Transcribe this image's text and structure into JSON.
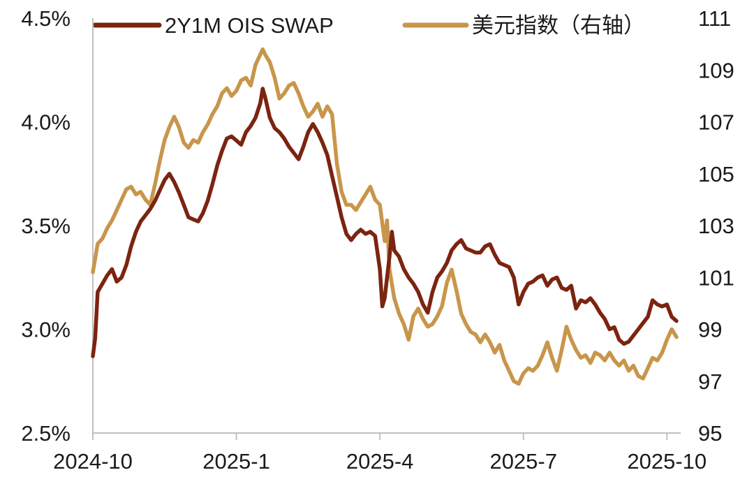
{
  "chart_data": {
    "type": "line",
    "title": "",
    "xlabel": "",
    "ylabel": "",
    "x_ticks": [
      "2024-10",
      "2025-1",
      "2025-4",
      "2025-7",
      "2025-10"
    ],
    "x_range": [
      0,
      12.2
    ],
    "y_left": {
      "ticks": [
        "4.5%",
        "4.0%",
        "3.5%",
        "3.0%",
        "2.5%"
      ],
      "tick_values": [
        4.5,
        4.0,
        3.5,
        3.0,
        2.5
      ],
      "range": [
        2.5,
        4.5
      ]
    },
    "y_right": {
      "ticks": [
        "111",
        "109",
        "107",
        "105",
        "103",
        "101",
        "99",
        "97",
        "95"
      ],
      "tick_values": [
        111,
        109,
        107,
        105,
        103,
        101,
        99,
        97,
        95
      ],
      "range": [
        95,
        111
      ]
    },
    "grid": false,
    "legend_position": "top",
    "series": [
      {
        "name": "2Y1M OIS SWAP",
        "axis": "left",
        "color": "#7b2410",
        "points": [
          [
            0.0,
            2.87
          ],
          [
            0.05,
            2.96
          ],
          [
            0.1,
            3.18
          ],
          [
            0.2,
            3.22
          ],
          [
            0.3,
            3.26
          ],
          [
            0.4,
            3.29
          ],
          [
            0.5,
            3.23
          ],
          [
            0.6,
            3.25
          ],
          [
            0.7,
            3.31
          ],
          [
            0.8,
            3.4
          ],
          [
            0.9,
            3.47
          ],
          [
            1.0,
            3.52
          ],
          [
            1.1,
            3.55
          ],
          [
            1.2,
            3.58
          ],
          [
            1.3,
            3.62
          ],
          [
            1.4,
            3.67
          ],
          [
            1.5,
            3.72
          ],
          [
            1.6,
            3.75
          ],
          [
            1.7,
            3.71
          ],
          [
            1.8,
            3.66
          ],
          [
            1.9,
            3.6
          ],
          [
            2.0,
            3.54
          ],
          [
            2.1,
            3.53
          ],
          [
            2.2,
            3.52
          ],
          [
            2.3,
            3.56
          ],
          [
            2.4,
            3.62
          ],
          [
            2.5,
            3.7
          ],
          [
            2.6,
            3.79
          ],
          [
            2.7,
            3.86
          ],
          [
            2.8,
            3.92
          ],
          [
            2.9,
            3.93
          ],
          [
            3.0,
            3.91
          ],
          [
            3.1,
            3.89
          ],
          [
            3.2,
            3.95
          ],
          [
            3.3,
            3.98
          ],
          [
            3.4,
            4.02
          ],
          [
            3.5,
            4.09
          ],
          [
            3.55,
            4.16
          ],
          [
            3.6,
            4.12
          ],
          [
            3.7,
            4.02
          ],
          [
            3.8,
            3.97
          ],
          [
            3.9,
            3.95
          ],
          [
            4.0,
            3.92
          ],
          [
            4.1,
            3.88
          ],
          [
            4.2,
            3.85
          ],
          [
            4.3,
            3.82
          ],
          [
            4.4,
            3.88
          ],
          [
            4.5,
            3.95
          ],
          [
            4.6,
            3.99
          ],
          [
            4.7,
            3.95
          ],
          [
            4.8,
            3.9
          ],
          [
            4.9,
            3.84
          ],
          [
            5.0,
            3.74
          ],
          [
            5.1,
            3.64
          ],
          [
            5.2,
            3.54
          ],
          [
            5.3,
            3.46
          ],
          [
            5.4,
            3.43
          ],
          [
            5.5,
            3.46
          ],
          [
            5.6,
            3.48
          ],
          [
            5.7,
            3.46
          ],
          [
            5.8,
            3.47
          ],
          [
            5.9,
            3.45
          ],
          [
            6.0,
            3.29
          ],
          [
            6.05,
            3.11
          ],
          [
            6.1,
            3.15
          ],
          [
            6.15,
            3.25
          ],
          [
            6.2,
            3.35
          ],
          [
            6.25,
            3.47
          ],
          [
            6.3,
            3.38
          ],
          [
            6.4,
            3.35
          ],
          [
            6.5,
            3.29
          ],
          [
            6.6,
            3.25
          ],
          [
            6.7,
            3.22
          ],
          [
            6.8,
            3.18
          ],
          [
            6.9,
            3.12
          ],
          [
            7.0,
            3.08
          ],
          [
            7.1,
            3.18
          ],
          [
            7.2,
            3.25
          ],
          [
            7.3,
            3.28
          ],
          [
            7.4,
            3.32
          ],
          [
            7.5,
            3.38
          ],
          [
            7.6,
            3.41
          ],
          [
            7.7,
            3.43
          ],
          [
            7.8,
            3.39
          ],
          [
            7.9,
            3.38
          ],
          [
            8.0,
            3.37
          ],
          [
            8.1,
            3.37
          ],
          [
            8.2,
            3.4
          ],
          [
            8.3,
            3.41
          ],
          [
            8.4,
            3.36
          ],
          [
            8.5,
            3.32
          ],
          [
            8.6,
            3.31
          ],
          [
            8.7,
            3.3
          ],
          [
            8.8,
            3.25
          ],
          [
            8.9,
            3.12
          ],
          [
            9.0,
            3.18
          ],
          [
            9.1,
            3.22
          ],
          [
            9.2,
            3.23
          ],
          [
            9.3,
            3.25
          ],
          [
            9.4,
            3.26
          ],
          [
            9.5,
            3.21
          ],
          [
            9.6,
            3.24
          ],
          [
            9.7,
            3.25
          ],
          [
            9.8,
            3.2
          ],
          [
            9.9,
            3.19
          ],
          [
            10.0,
            3.21
          ],
          [
            10.1,
            3.1
          ],
          [
            10.2,
            3.14
          ],
          [
            10.3,
            3.13
          ],
          [
            10.4,
            3.15
          ],
          [
            10.5,
            3.12
          ],
          [
            10.6,
            3.08
          ],
          [
            10.7,
            3.05
          ],
          [
            10.8,
            3.0
          ],
          [
            10.9,
            3.01
          ],
          [
            11.0,
            2.95
          ],
          [
            11.1,
            2.93
          ],
          [
            11.2,
            2.94
          ],
          [
            11.3,
            2.97
          ],
          [
            11.4,
            3.0
          ],
          [
            11.5,
            3.03
          ],
          [
            11.6,
            3.06
          ],
          [
            11.7,
            3.14
          ],
          [
            11.8,
            3.12
          ],
          [
            11.9,
            3.11
          ],
          [
            12.0,
            3.12
          ],
          [
            12.1,
            3.06
          ],
          [
            12.2,
            3.04
          ]
        ]
      },
      {
        "name": "美元指数（右轴）",
        "axis": "right",
        "color": "#c8964b",
        "points": [
          [
            0.0,
            101.2
          ],
          [
            0.1,
            102.3
          ],
          [
            0.2,
            102.5
          ],
          [
            0.3,
            102.9
          ],
          [
            0.4,
            103.2
          ],
          [
            0.5,
            103.6
          ],
          [
            0.6,
            104.0
          ],
          [
            0.7,
            104.4
          ],
          [
            0.8,
            104.5
          ],
          [
            0.9,
            104.2
          ],
          [
            1.0,
            104.3
          ],
          [
            1.1,
            104.0
          ],
          [
            1.2,
            103.8
          ],
          [
            1.3,
            104.6
          ],
          [
            1.4,
            105.5
          ],
          [
            1.5,
            106.3
          ],
          [
            1.6,
            106.8
          ],
          [
            1.7,
            107.2
          ],
          [
            1.8,
            106.8
          ],
          [
            1.9,
            106.2
          ],
          [
            2.0,
            106.0
          ],
          [
            2.1,
            106.3
          ],
          [
            2.2,
            106.2
          ],
          [
            2.3,
            106.6
          ],
          [
            2.4,
            106.9
          ],
          [
            2.5,
            107.3
          ],
          [
            2.6,
            107.6
          ],
          [
            2.7,
            108.1
          ],
          [
            2.8,
            108.3
          ],
          [
            2.9,
            108.0
          ],
          [
            3.0,
            108.2
          ],
          [
            3.1,
            108.6
          ],
          [
            3.2,
            108.7
          ],
          [
            3.3,
            108.4
          ],
          [
            3.4,
            109.2
          ],
          [
            3.5,
            109.6
          ],
          [
            3.55,
            109.8
          ],
          [
            3.6,
            109.6
          ],
          [
            3.7,
            109.3
          ],
          [
            3.8,
            108.7
          ],
          [
            3.9,
            107.9
          ],
          [
            4.0,
            108.1
          ],
          [
            4.1,
            108.4
          ],
          [
            4.2,
            108.5
          ],
          [
            4.3,
            108.1
          ],
          [
            4.4,
            107.6
          ],
          [
            4.5,
            107.2
          ],
          [
            4.6,
            107.4
          ],
          [
            4.7,
            107.7
          ],
          [
            4.8,
            107.2
          ],
          [
            4.9,
            107.6
          ],
          [
            5.0,
            107.3
          ],
          [
            5.1,
            105.4
          ],
          [
            5.2,
            104.3
          ],
          [
            5.3,
            103.8
          ],
          [
            5.4,
            103.8
          ],
          [
            5.5,
            103.6
          ],
          [
            5.6,
            103.9
          ],
          [
            5.7,
            104.2
          ],
          [
            5.8,
            104.5
          ],
          [
            5.9,
            104.0
          ],
          [
            6.0,
            103.8
          ],
          [
            6.1,
            102.4
          ],
          [
            6.15,
            103.2
          ],
          [
            6.2,
            101.3
          ],
          [
            6.3,
            100.2
          ],
          [
            6.4,
            99.6
          ],
          [
            6.5,
            99.2
          ],
          [
            6.6,
            98.6
          ],
          [
            6.7,
            99.5
          ],
          [
            6.8,
            99.8
          ],
          [
            6.9,
            99.4
          ],
          [
            7.0,
            99.1
          ],
          [
            7.1,
            99.2
          ],
          [
            7.2,
            99.5
          ],
          [
            7.3,
            99.9
          ],
          [
            7.4,
            100.8
          ],
          [
            7.5,
            101.3
          ],
          [
            7.6,
            100.5
          ],
          [
            7.7,
            99.6
          ],
          [
            7.8,
            99.2
          ],
          [
            7.9,
            98.9
          ],
          [
            8.0,
            98.8
          ],
          [
            8.1,
            98.5
          ],
          [
            8.2,
            98.8
          ],
          [
            8.3,
            98.5
          ],
          [
            8.4,
            98.1
          ],
          [
            8.5,
            98.4
          ],
          [
            8.6,
            97.8
          ],
          [
            8.7,
            97.4
          ],
          [
            8.8,
            97.0
          ],
          [
            8.9,
            96.9
          ],
          [
            9.0,
            97.3
          ],
          [
            9.1,
            97.5
          ],
          [
            9.2,
            97.4
          ],
          [
            9.3,
            97.6
          ],
          [
            9.4,
            98.0
          ],
          [
            9.5,
            98.5
          ],
          [
            9.6,
            97.9
          ],
          [
            9.7,
            97.4
          ],
          [
            9.8,
            98.2
          ],
          [
            9.9,
            99.1
          ],
          [
            10.0,
            98.6
          ],
          [
            10.1,
            98.2
          ],
          [
            10.2,
            97.9
          ],
          [
            10.3,
            98.0
          ],
          [
            10.4,
            97.7
          ],
          [
            10.5,
            98.1
          ],
          [
            10.6,
            98.0
          ],
          [
            10.7,
            97.8
          ],
          [
            10.8,
            98.1
          ],
          [
            10.9,
            97.8
          ],
          [
            11.0,
            97.6
          ],
          [
            11.1,
            97.8
          ],
          [
            11.2,
            97.4
          ],
          [
            11.3,
            97.6
          ],
          [
            11.4,
            97.2
          ],
          [
            11.5,
            97.1
          ],
          [
            11.6,
            97.5
          ],
          [
            11.7,
            97.9
          ],
          [
            11.8,
            97.8
          ],
          [
            11.9,
            98.1
          ],
          [
            12.0,
            98.6
          ],
          [
            12.1,
            99.0
          ],
          [
            12.2,
            98.7
          ]
        ]
      }
    ]
  }
}
